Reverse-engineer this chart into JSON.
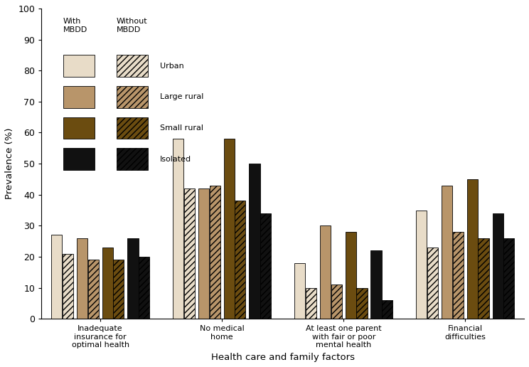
{
  "categories": [
    "Inadequate\ninsurance for\noptimal health",
    "No medical\nhome",
    "At least one parent\nwith fair or poor\nmental health",
    "Financial\ndifficulties"
  ],
  "with_mbdd": {
    "Urban": [
      27,
      58,
      18,
      35
    ],
    "Large rural": [
      26,
      42,
      30,
      43
    ],
    "Small rural": [
      23,
      58,
      28,
      45
    ],
    "Isolated": [
      26,
      50,
      22,
      34
    ]
  },
  "without_mbdd": {
    "Urban": [
      21,
      42,
      10,
      23
    ],
    "Large rural": [
      19,
      43,
      11,
      28
    ],
    "Small rural": [
      19,
      38,
      10,
      26
    ],
    "Isolated": [
      20,
      34,
      6,
      26
    ]
  },
  "with_colors": [
    "#e8dcc8",
    "#b8956a",
    "#6b4c10",
    "#111111"
  ],
  "without_colors": [
    "#e8dcc8",
    "#b8956a",
    "#6b4c10",
    "#111111"
  ],
  "area_types": [
    "Urban",
    "Large rural",
    "Small rural",
    "Isolated"
  ],
  "ylim": [
    0,
    100
  ],
  "yticks": [
    0,
    10,
    20,
    30,
    40,
    50,
    60,
    70,
    80,
    90,
    100
  ],
  "ylabel": "Prevalence (%)",
  "xlabel": "Health care and family factors"
}
